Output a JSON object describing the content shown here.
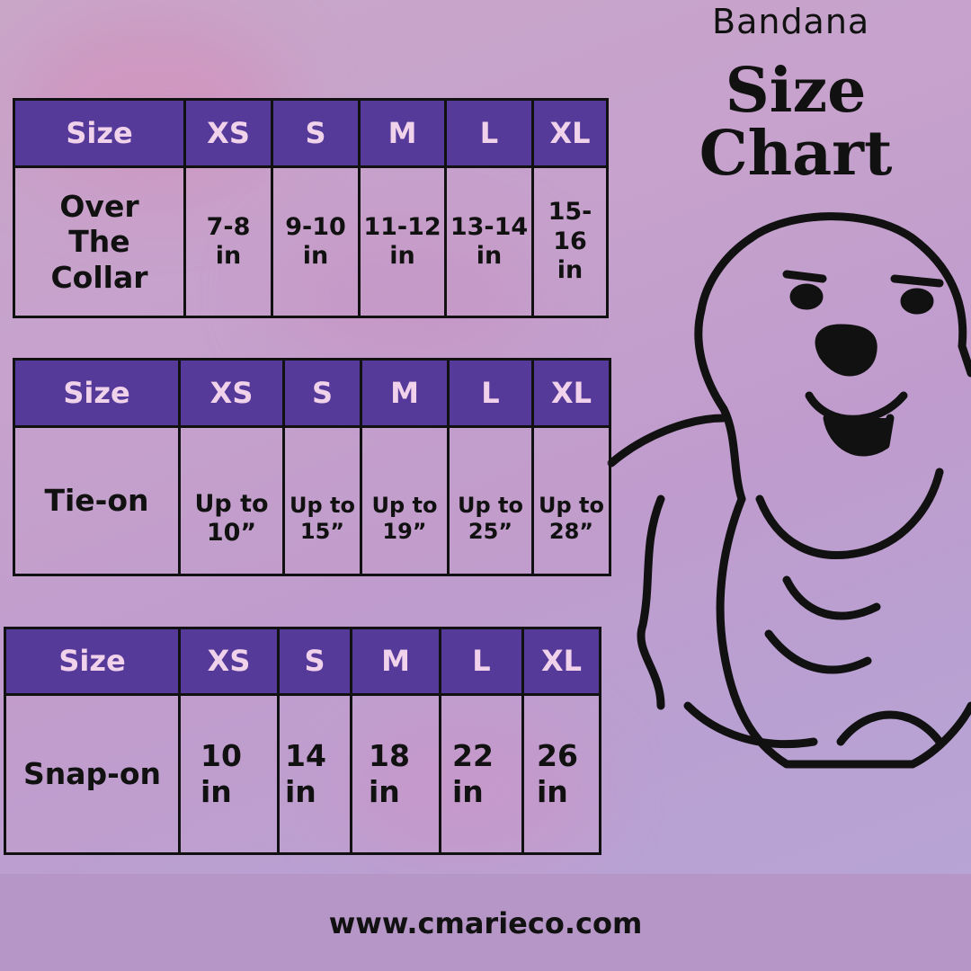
{
  "title": {
    "line1": "Bandana",
    "line2": "Size",
    "line3": "Chart"
  },
  "colors": {
    "header_bg": "#563a9a",
    "header_text": "#f0d2ea",
    "footer_bg": "#b596c6"
  },
  "illustration": "golden-retriever-dog-outline",
  "tables": [
    {
      "headers": [
        "Size",
        "XS",
        "S",
        "M",
        "L",
        "XL"
      ],
      "label": [
        "Over",
        "The",
        "Collar"
      ],
      "values": [
        [
          "7-8",
          "in"
        ],
        [
          "9-10",
          "in"
        ],
        [
          "11-12",
          "in"
        ],
        [
          "13-14",
          "in"
        ],
        [
          "15-16",
          "in"
        ]
      ]
    },
    {
      "headers": [
        "Size",
        "XS",
        "S",
        "M",
        "L",
        "XL"
      ],
      "label": [
        "Tie-on"
      ],
      "values": [
        [
          "Up to",
          "10”"
        ],
        [
          "Up to",
          "15”"
        ],
        [
          "Up to",
          "19”"
        ],
        [
          "Up to",
          "25”"
        ],
        [
          "Up to",
          "28”"
        ]
      ]
    },
    {
      "headers": [
        "Size",
        "XS",
        "S",
        "M",
        "L",
        "XL"
      ],
      "label": [
        "Snap-on"
      ],
      "values": [
        [
          "10",
          "in"
        ],
        [
          "14",
          "in"
        ],
        [
          "18",
          "in"
        ],
        [
          "22",
          "in"
        ],
        [
          "26",
          "in"
        ]
      ]
    }
  ],
  "footer": {
    "url": "www.cmarieco.com"
  }
}
